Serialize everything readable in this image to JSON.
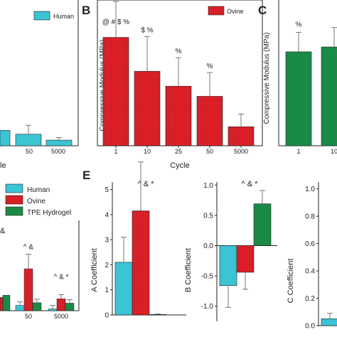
{
  "colors": {
    "human": "#3bc4d4",
    "ovine": "#e8232c",
    "tpe": "#1a8a46",
    "axis": "#222222"
  },
  "panels": {
    "A": {
      "legend": [
        "Human"
      ],
      "categories": [
        "50",
        "5000"
      ],
      "values": [
        0.45,
        0.22
      ],
      "errors": [
        0.35,
        0.1
      ],
      "xlabel": "le"
    },
    "B": {
      "letter": "B",
      "legend": [
        "Ovine"
      ],
      "ylabel": "Compressive Modulus (MPa)",
      "xlabel": "Cycle",
      "categories": [
        "1",
        "10",
        "25",
        "50",
        "5000"
      ],
      "values": [
        3.42,
        2.35,
        1.88,
        1.56,
        0.6
      ],
      "errors": [
        1.2,
        1.1,
        0.9,
        0.75,
        0.4
      ],
      "annotations": [
        "@ # $ %",
        "$ %",
        "%",
        "%",
        ""
      ]
    },
    "C": {
      "letter": "C",
      "ylabel": "Compressive Modulus (MPa)",
      "categories": [
        "1",
        "10"
      ],
      "values": [
        0.58,
        0.61
      ],
      "errors": [
        0.12,
        0.12
      ],
      "annotations": [
        "%",
        ""
      ]
    },
    "D": {
      "legend": [
        "Human",
        "Ovine",
        "TPE Hydrogel"
      ],
      "corner_mark": "&",
      "categories": [
        "50",
        "5000"
      ],
      "groups": [
        {
          "human": 0.12,
          "ovine": 0.95,
          "tpe": 0.18
        },
        {
          "human": 0.04,
          "ovine": 0.27,
          "tpe": 0.17
        }
      ],
      "annotations": [
        "^ &",
        "^ & *"
      ]
    },
    "E": {
      "letter": "E",
      "annotation": "^ & *",
      "ylabel": "A Coefficient",
      "yticks": [
        "0",
        "1",
        "2",
        "3",
        "4",
        "5"
      ],
      "ylim": [
        0,
        5.3
      ],
      "values": [
        2.1,
        4.15,
        0.02
      ],
      "errors": [
        1.0,
        1.95,
        0.02
      ]
    },
    "F": {
      "annotation": "^ & *",
      "ylabel": "B Coefficient",
      "yticks": [
        "1.0",
        "0.5",
        "0.0",
        "-0.5",
        "-1.0"
      ],
      "ylim": [
        -1.25,
        1.05
      ],
      "values": [
        -0.66,
        -0.44,
        0.69
      ],
      "errors": [
        0.36,
        0.28,
        0.22
      ]
    },
    "G": {
      "ylabel": "C Coefficient",
      "yticks": [
        "1.0",
        "0.8",
        "0.6",
        "0.4",
        "0.2",
        "0.0"
      ],
      "ylim": [
        0,
        1.05
      ],
      "values": [
        0.05
      ],
      "errors": [
        0.04
      ]
    }
  }
}
